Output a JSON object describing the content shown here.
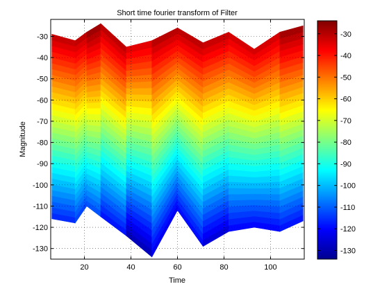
{
  "colormap": "jet",
  "chart_data": {
    "type": "area",
    "title": "Short time fourier transform of Filter",
    "xlabel": "Time",
    "ylabel": "Magnitude",
    "xlim": [
      5.5,
      114.5
    ],
    "ylim": [
      -135,
      -22
    ],
    "grid": true,
    "xticks": [
      20,
      40,
      60,
      80,
      100
    ],
    "yticks": [
      -30,
      -40,
      -50,
      -60,
      -70,
      -80,
      -90,
      -100,
      -110,
      -120,
      -130
    ],
    "colorbar": {
      "ticks": [
        -30,
        -40,
        -50,
        -60,
        -70,
        -80,
        -90,
        -100,
        -110,
        -120,
        -130
      ],
      "range": [
        -134,
        -24
      ]
    },
    "time": [
      6,
      16,
      21,
      27,
      38,
      49,
      60,
      71,
      82,
      93,
      104,
      114
    ],
    "upper_envelope": [
      -29,
      -32,
      -28,
      -24,
      -35,
      -32,
      -26,
      -33,
      -28,
      -36,
      -28,
      -25
    ],
    "lower_envelope": [
      -116,
      -118,
      -110,
      -115,
      -124,
      -134,
      -112,
      -129,
      -122,
      -120,
      -122,
      -117
    ],
    "contour_levels": [
      -35,
      -40,
      -45,
      -50,
      -55,
      -60,
      -65,
      -70,
      -75,
      -80,
      -85,
      -90,
      -95,
      -100,
      -105,
      -110
    ]
  }
}
